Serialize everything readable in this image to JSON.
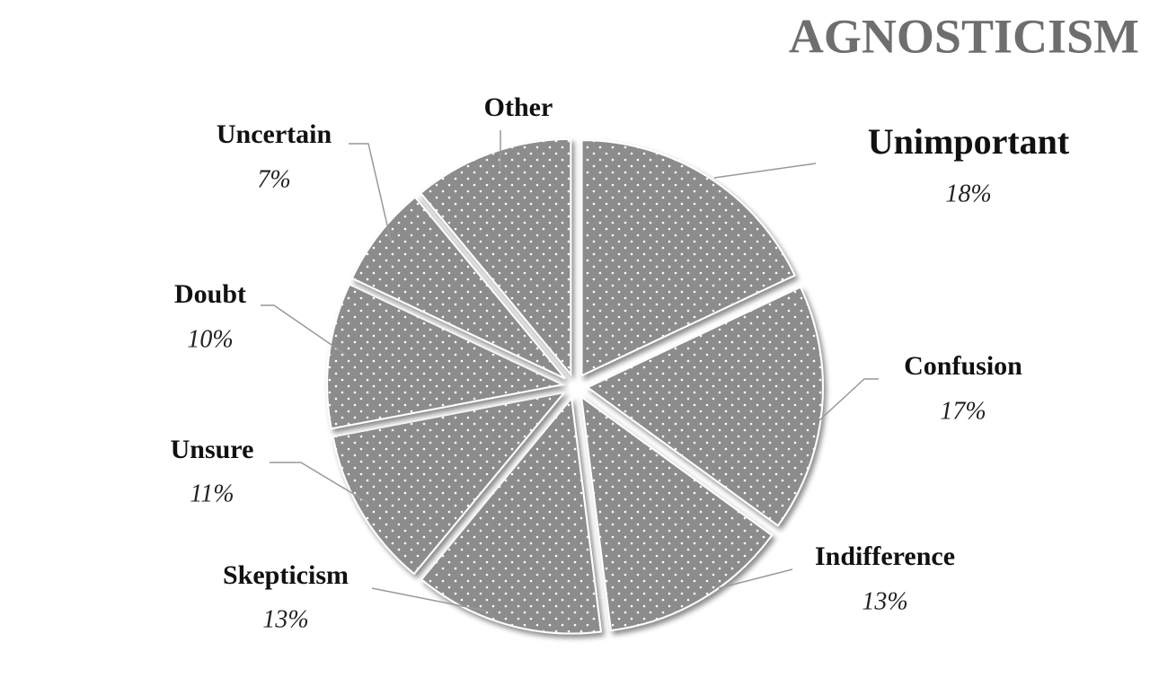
{
  "chart_data": {
    "type": "pie",
    "title": "AGNOSTICISM",
    "categories": [
      "Unimportant",
      "Confusion",
      "Indifference",
      "Skepticism",
      "Unsure",
      "Doubt",
      "Uncertain",
      "Other"
    ],
    "values": [
      18,
      17,
      13,
      13,
      11,
      10,
      7,
      11
    ],
    "value_labels": [
      "18%",
      "17%",
      "13%",
      "13%",
      "11%",
      "10%",
      "7%",
      null
    ],
    "color": "#8c8c8c"
  }
}
